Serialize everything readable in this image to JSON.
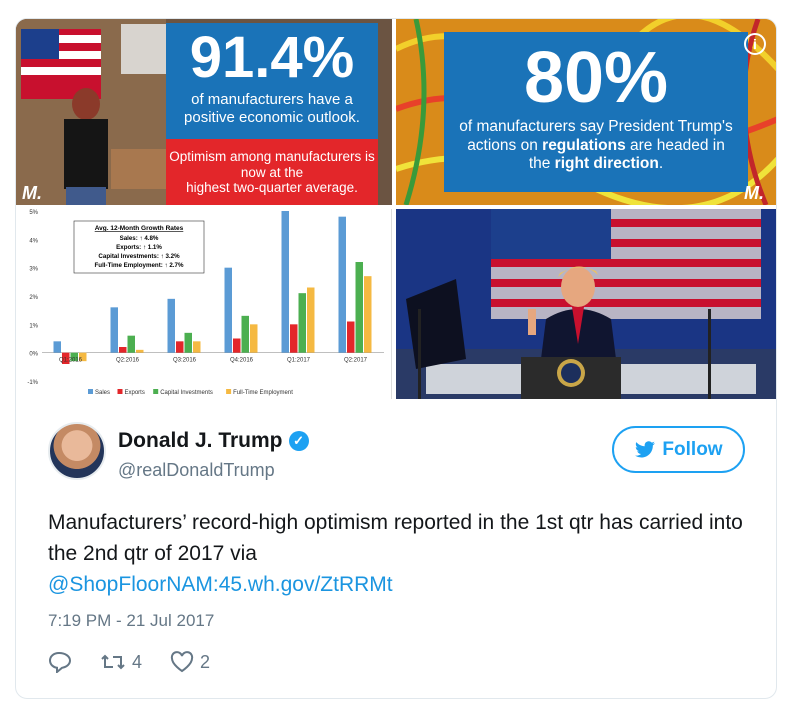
{
  "tweet": {
    "author_name": "Donald J. Trump",
    "handle": "@realDonaldTrump",
    "follow_label": "Follow",
    "text_part1": "Manufacturers’ record-high optimism reported in the 1st qtr has carried into the 2nd qtr of 2017 via",
    "mention": "@ShopFloorNAM",
    "sep": ":",
    "url": "45.wh.gov/ZtRRMt",
    "timestamp": "7:19 PM - 21 Jul 2017",
    "retweets": "4",
    "likes": "2"
  },
  "tile1": {
    "pct": "91.4%",
    "sub": "of manufacturers have a positive economic outlook.",
    "red_line1": "Optimism among manufacturers is now at the",
    "red_line2": "highest two-quarter average.",
    "logo": "M."
  },
  "tile2": {
    "pct": "80%",
    "sub_a": "of manufacturers say President Trump's actions on ",
    "sub_b": "regulations",
    "sub_c": " are headed in the ",
    "sub_d": "right direction",
    "sub_e": ".",
    "logo": "M."
  },
  "chart_data": {
    "type": "bar",
    "title": "Avg. 12-Month Growth Rates",
    "annotations": [
      "Sales: ↑ 4.8%",
      "Exports: ↑ 1.1%",
      "Capital Investments: ↑ 3.2%",
      "Full-Time Employment: ↑ 2.7%"
    ],
    "categories": [
      "Q1:2016",
      "Q2:2016",
      "Q3:2016",
      "Q4:2016",
      "Q1:2017",
      "Q2:2017"
    ],
    "series": [
      {
        "name": "Sales",
        "color": "#5b9bd5",
        "values": [
          0.4,
          1.6,
          1.9,
          3.0,
          5.0,
          4.8
        ]
      },
      {
        "name": "Exports",
        "color": "#e3262a",
        "values": [
          -0.4,
          0.2,
          0.4,
          0.5,
          1.0,
          1.1
        ]
      },
      {
        "name": "Capital Investments",
        "color": "#4caf50",
        "values": [
          -0.3,
          0.6,
          0.7,
          1.3,
          2.1,
          3.2
        ]
      },
      {
        "name": "Full-Time Employment",
        "color": "#f5b942",
        "values": [
          -0.3,
          0.1,
          0.4,
          1.0,
          2.3,
          2.7
        ]
      }
    ],
    "yticks": [
      "5%",
      "4%",
      "3%",
      "2%",
      "1%",
      "0%",
      "-1%"
    ],
    "ylim": [
      -1,
      5
    ],
    "legend_position": "bottom"
  }
}
